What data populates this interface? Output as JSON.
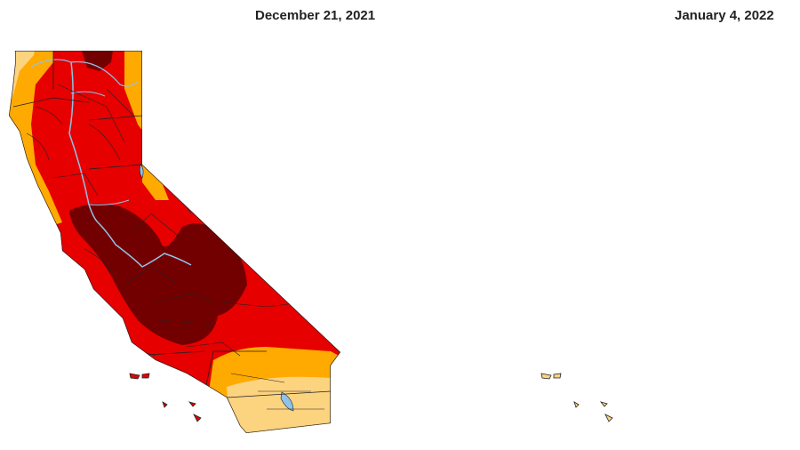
{
  "maps": [
    {
      "date": "December 21, 2021",
      "colors": {
        "base": "#e60000",
        "moderate": "#fcd37f",
        "severe": "#ffaa00",
        "extreme": "#e60000",
        "exceptional": "#730000",
        "water": "#8fc3e8",
        "outline": "#222222"
      }
    },
    {
      "date": "January 4, 2022",
      "colors": {
        "base": "#ffaa00",
        "abnormally_dry": "#ffff00",
        "moderate": "#fcd37f",
        "severe": "#ffaa00",
        "extreme": "#e60000",
        "water": "#8fc3e8",
        "outline": "#222222"
      }
    }
  ]
}
